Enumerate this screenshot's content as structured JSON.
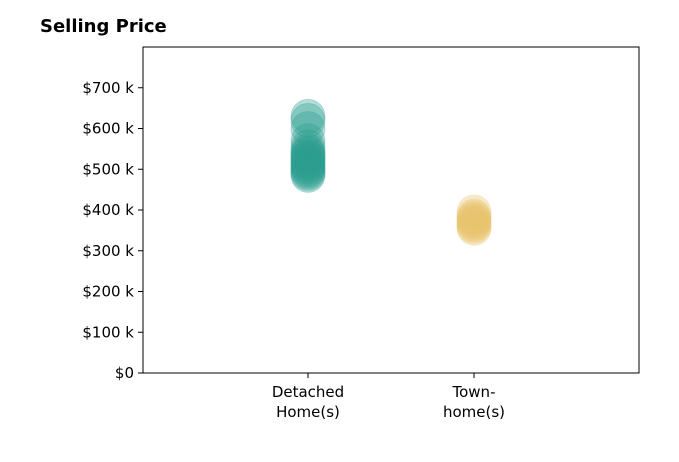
{
  "chart_data": {
    "type": "scatter",
    "title": "Selling Price",
    "xlabel": "",
    "ylabel": "",
    "categories": [
      "Detached\nHome(s)",
      "Town-\nhome(s)"
    ],
    "yticks": [
      "$0",
      "$100 k",
      "$200 k",
      "$300 k",
      "$400 k",
      "$500 k",
      "$600 k",
      "$700 k"
    ],
    "ylim": [
      0,
      800000
    ],
    "grid": false,
    "series": [
      {
        "category": "Detached\nHome(s)",
        "color": "#2a9d8f",
        "values": [
          620000,
          630000,
          600000,
          570000,
          555000,
          545000,
          535000,
          530000,
          525000,
          520000,
          515000,
          510000,
          500000,
          495000,
          490000,
          485000,
          540000,
          505000
        ]
      },
      {
        "category": "Town-\nhome(s)",
        "color": "#e9c46a",
        "values": [
          395000,
          385000,
          375000,
          370000,
          365000,
          360000,
          355000,
          380000
        ]
      }
    ]
  }
}
